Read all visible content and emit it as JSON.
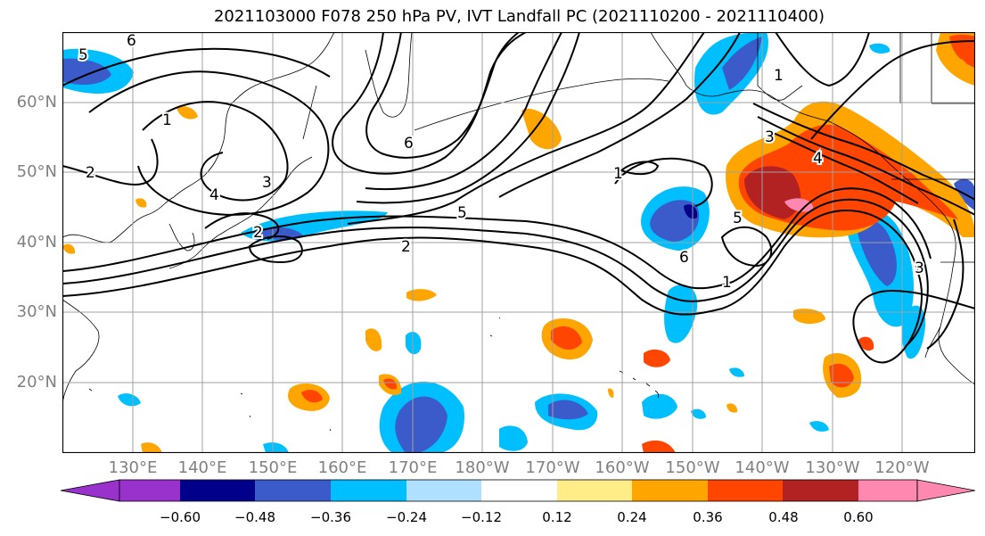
{
  "title": "2021103000 F078 250 hPa PV, IVT Landfall PC (2021110200 - 2021110400)",
  "lat_labels": [
    "60°N",
    "50°N",
    "40°N",
    "30°N",
    "20°N"
  ],
  "lon_labels": [
    "130°E",
    "140°E",
    "150°E",
    "160°E",
    "170°E",
    "180°W",
    "170°W",
    "160°W",
    "150°W",
    "140°W",
    "130°W",
    "120°W"
  ],
  "colorbar": {
    "colors": [
      "#9932CC",
      "#00008B",
      "#3A5BC9",
      "#00BFFF",
      "#B0E0FF",
      "#FFFFFF",
      "#FFEE88",
      "#FFA500",
      "#FF4500",
      "#B22222",
      "#FF88B0"
    ],
    "ticks": [
      "−0.60",
      "−0.48",
      "−0.36",
      "−0.24",
      "−0.12",
      "0.12",
      "0.24",
      "0.36",
      "0.48",
      "0.60"
    ]
  },
  "contour_labels": [
    "6",
    "5",
    "1",
    "2",
    "3",
    "4",
    "5",
    "2",
    "2",
    "6",
    "1",
    "1",
    "3",
    "4",
    "5",
    "6",
    "1",
    "3"
  ],
  "colors": {
    "land_line": "#000000",
    "grid": "#a0a0a0",
    "contour": "#000000"
  }
}
